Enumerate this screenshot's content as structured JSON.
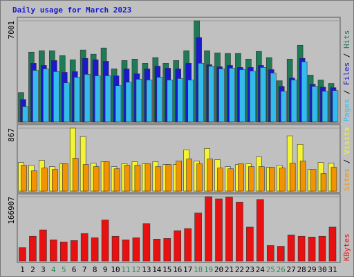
{
  "chart_data": [
    {
      "type": "bar",
      "title": "Daily usage for March 2023",
      "ylim": [
        0,
        7001
      ],
      "yticks": [
        7001
      ],
      "grid": true,
      "legend_separator": " / ",
      "series": [
        {
          "name": "Pages",
          "color": "#33bbee",
          "values": [
            1060,
            3570,
            3670,
            3480,
            2700,
            3090,
            3290,
            3190,
            3190,
            2510,
            2750,
            2950,
            2900,
            3090,
            2900,
            3000,
            2900,
            4060,
            3860,
            3670,
            3720,
            3620,
            3520,
            3770,
            3380,
            2120,
            2900,
            4160,
            2460,
            2120,
            2170
          ]
        },
        {
          "name": "Files",
          "color": "#1a1acc",
          "values": [
            1550,
            4060,
            3910,
            4250,
            3430,
            3480,
            4400,
            4300,
            4200,
            3190,
            3670,
            3330,
            3670,
            3860,
            3720,
            3670,
            4060,
            5840,
            3960,
            3820,
            3910,
            3770,
            3770,
            3910,
            3620,
            2460,
            3040,
            4400,
            2610,
            2410,
            2370
          ]
        },
        {
          "name": "Hits",
          "color": "#1f7a55",
          "values": [
            2030,
            4830,
            4930,
            4930,
            4590,
            4300,
            4980,
            4690,
            5120,
            3670,
            4250,
            4350,
            4060,
            4450,
            4060,
            4250,
            4930,
            7001,
            4930,
            4780,
            4740,
            4740,
            4350,
            4880,
            4450,
            2850,
            4350,
            5310,
            3240,
            2900,
            2660
          ]
        }
      ]
    },
    {
      "type": "bar",
      "ylim": [
        0,
        867
      ],
      "yticks": [
        867
      ],
      "grid": true,
      "legend_separator": " / ",
      "series": [
        {
          "name": "Sites",
          "color": "#f29400",
          "values": [
            356,
            279,
            318,
            298,
            376,
            453,
            366,
            337,
            405,
            308,
            356,
            356,
            376,
            337,
            366,
            414,
            443,
            376,
            443,
            318,
            308,
            376,
            337,
            337,
            327,
            318,
            385,
            414,
            298,
            241,
            327
          ]
        },
        {
          "name": "Visits",
          "color": "#f4f434",
          "values": [
            395,
            356,
            424,
            337,
            376,
            867,
            751,
            385,
            405,
            337,
            376,
            405,
            376,
            405,
            366,
            366,
            568,
            414,
            588,
            434,
            337,
            366,
            376,
            472,
            327,
            356,
            761,
            645,
            298,
            395,
            385
          ]
        }
      ]
    },
    {
      "type": "bar",
      "ylim": [
        0,
        166907
      ],
      "yticks": [
        166907
      ],
      "grid": true,
      "series": [
        {
          "name": "KBytes",
          "color": "#e81010",
          "values": [
            34850,
            64190,
            80700,
            55020,
            49520,
            53190,
            71530,
            60520,
            106370,
            64190,
            55020,
            60520,
            97200,
            56850,
            58690,
            78860,
            84360,
            124710,
            166907,
            161400,
            166000,
            152220,
            88030,
            159560,
            40350,
            38510,
            67860,
            64190,
            62360,
            64190,
            88030
          ]
        }
      ],
      "categories": [
        "1",
        "2",
        "3",
        "4",
        "5",
        "6",
        "7",
        "8",
        "9",
        "10",
        "11",
        "12",
        "13",
        "14",
        "15",
        "16",
        "17",
        "18",
        "19",
        "20",
        "21",
        "22",
        "23",
        "24",
        "25",
        "26",
        "27",
        "28",
        "29",
        "30",
        "31"
      ],
      "category_colors": [
        "#000",
        "#000",
        "#000",
        "#2e8b57",
        "#2e8b57",
        "#000",
        "#000",
        "#000",
        "#000",
        "#000",
        "#2e8b57",
        "#2e8b57",
        "#000",
        "#000",
        "#000",
        "#000",
        "#000",
        "#2e8b57",
        "#2e8b57",
        "#000",
        "#000",
        "#000",
        "#000",
        "#000",
        "#2e8b57",
        "#2e8b57",
        "#000",
        "#000",
        "#000",
        "#000",
        "#000"
      ]
    }
  ]
}
